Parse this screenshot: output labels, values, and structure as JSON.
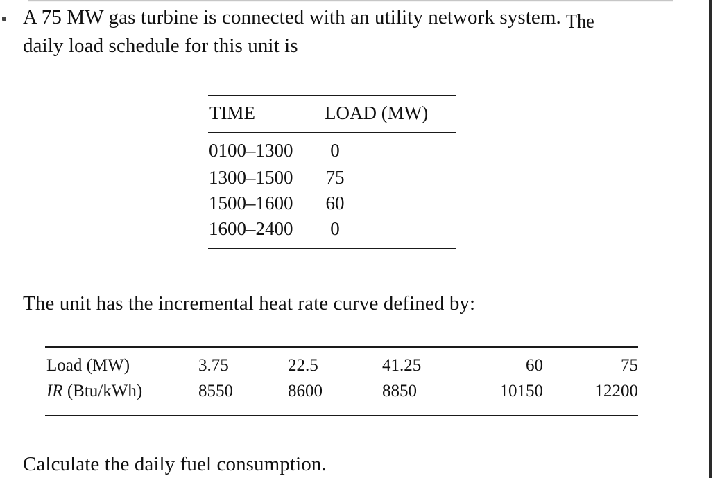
{
  "problem": {
    "line1_text": "A 75 MW gas turbine is connected with an utility network system.",
    "line1_tail": "The",
    "line2": "daily load schedule for this unit is",
    "curve_intro": "The unit has the incremental heat rate curve defined by:",
    "question": "Calculate the daily fuel consumption."
  },
  "schedule_table": {
    "headers": [
      "TIME",
      "LOAD (MW)"
    ],
    "rows": [
      {
        "time": "0100–1300",
        "load": "0"
      },
      {
        "time": "1300–1500",
        "load": "75"
      },
      {
        "time": "1500–1600",
        "load": "60"
      },
      {
        "time": "1600–2400",
        "load": "0"
      }
    ]
  },
  "heat_rate_table": {
    "load_label": "Load (MW)",
    "ir_label_symbol": "IR",
    "ir_label_unit": "(Btu/kWh)",
    "loads": [
      "3.75",
      "22.5",
      "41.25",
      "60",
      "75"
    ],
    "rates": [
      "8550",
      "8600",
      "8850",
      "10150",
      "12200"
    ]
  }
}
